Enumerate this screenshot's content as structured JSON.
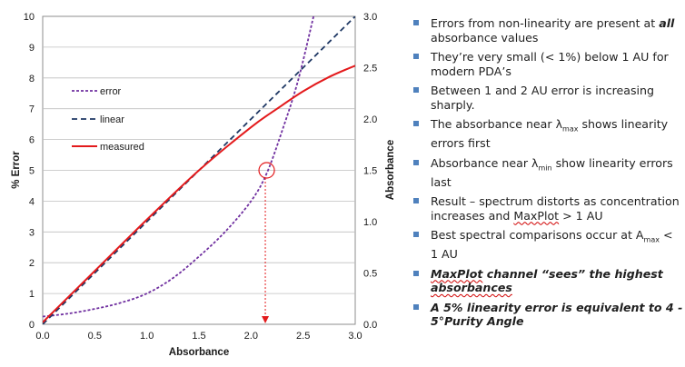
{
  "chart_data": {
    "type": "line",
    "xlabel": "Absorbance",
    "ylabel_left": "% Error",
    "ylabel_right": "Absorbance",
    "xlim": [
      0,
      3
    ],
    "ylim_left": [
      0,
      10
    ],
    "ylim_right": [
      0,
      3
    ],
    "x_ticks": [
      "0.0",
      "0.5",
      "1.0",
      "1.5",
      "2.0",
      "2.5",
      "3.0"
    ],
    "y_left_ticks": [
      "0",
      "1",
      "2",
      "3",
      "4",
      "5",
      "6",
      "7",
      "8",
      "9",
      "10"
    ],
    "y_right_ticks": [
      "0.0",
      "0.5",
      "1.0",
      "1.5",
      "2.0",
      "2.5",
      "3.0"
    ],
    "gridlines": "horizontal",
    "legend": "inside-left",
    "series": [
      {
        "name": "error",
        "axis": "left",
        "style": "dotted",
        "color": "#7030a0",
        "points": [
          [
            0,
            0.25
          ],
          [
            0.25,
            0.35
          ],
          [
            0.5,
            0.5
          ],
          [
            0.75,
            0.7
          ],
          [
            1.0,
            1.0
          ],
          [
            1.25,
            1.5
          ],
          [
            1.5,
            2.2
          ],
          [
            1.75,
            3.0
          ],
          [
            2.0,
            4.0
          ],
          [
            2.15,
            4.9
          ],
          [
            2.3,
            6.3
          ],
          [
            2.45,
            7.9
          ],
          [
            2.6,
            10.0
          ]
        ]
      },
      {
        "name": "linear",
        "axis": "right",
        "style": "dashed",
        "color": "#1f3864",
        "points": [
          [
            0,
            0
          ],
          [
            3,
            3
          ]
        ]
      },
      {
        "name": "measured",
        "axis": "right",
        "style": "solid",
        "color": "#e31a1c",
        "points": [
          [
            0,
            0.02
          ],
          [
            0.5,
            0.52
          ],
          [
            1.0,
            1.02
          ],
          [
            1.5,
            1.5
          ],
          [
            2.0,
            1.92
          ],
          [
            2.25,
            2.1
          ],
          [
            2.5,
            2.27
          ],
          [
            2.75,
            2.41
          ],
          [
            3.0,
            2.52
          ]
        ]
      }
    ],
    "annotation": {
      "type": "circle-with-arrow",
      "x": 2.15,
      "y_left": 5.0,
      "color": "#e31a1c"
    }
  },
  "bullets": [
    {
      "segments": [
        {
          "text": "Errors from non-linearity are present at "
        },
        {
          "text": "all",
          "style": "bold-italic"
        },
        {
          "text": " absorbance values"
        }
      ]
    },
    {
      "segments": [
        {
          "text": "They’re very small (< 1%) below 1 AU for modern PDA’s"
        }
      ]
    },
    {
      "segments": [
        {
          "text": "Between 1 and 2 AU error is increasing sharply."
        }
      ]
    },
    {
      "segments": [
        {
          "text": "The absorbance near λ"
        },
        {
          "text": "max",
          "style": "sub"
        },
        {
          "text": " shows linearity errors first"
        }
      ]
    },
    {
      "segments": [
        {
          "text": "Absorbance near λ"
        },
        {
          "text": "min",
          "style": "sub"
        },
        {
          "text": " show linearity errors last"
        }
      ]
    },
    {
      "segments": [
        {
          "text": "Result – spectrum distorts as concentration increases and "
        },
        {
          "text": "MaxPlot",
          "style": "squiggle"
        },
        {
          "text": " > 1 AU"
        }
      ]
    },
    {
      "segments": [
        {
          "text": "Best spectral comparisons occur at A"
        },
        {
          "text": "max",
          "style": "sub"
        },
        {
          "text": " < 1 AU"
        }
      ]
    },
    {
      "emphasis": true,
      "segments": [
        {
          "text": "MaxPlot",
          "style": "squiggle"
        },
        {
          "text": " channel “sees” the highest "
        },
        {
          "text": "absorbances",
          "style": "squiggle"
        }
      ]
    },
    {
      "emphasis": true,
      "segments": [
        {
          "text": "A 5% linearity error is equivalent to 4 - 5°Purity Angle"
        }
      ]
    }
  ]
}
